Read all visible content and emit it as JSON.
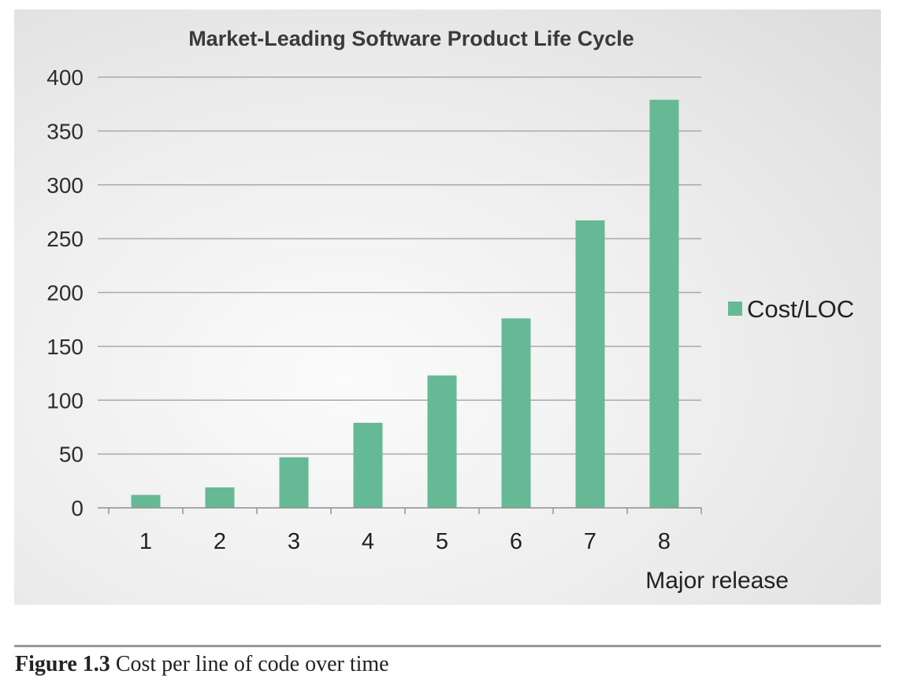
{
  "chart_data": {
    "type": "bar",
    "title": "Market-Leading Software Product Life Cycle",
    "xlabel": "Major release",
    "ylabel": "",
    "categories": [
      "1",
      "2",
      "3",
      "4",
      "5",
      "6",
      "7",
      "8"
    ],
    "series": [
      {
        "name": "Cost/LOC",
        "values": [
          12,
          19,
          47,
          79,
          123,
          176,
          267,
          379
        ],
        "color": "#66b995"
      }
    ],
    "ylim": [
      0,
      400
    ],
    "yticks": [
      0,
      50,
      100,
      150,
      200,
      250,
      300,
      350,
      400
    ],
    "grid": true,
    "legend_position": "right"
  },
  "caption": {
    "label": "Figure 1.3",
    "text": "Cost per line of code over time"
  }
}
